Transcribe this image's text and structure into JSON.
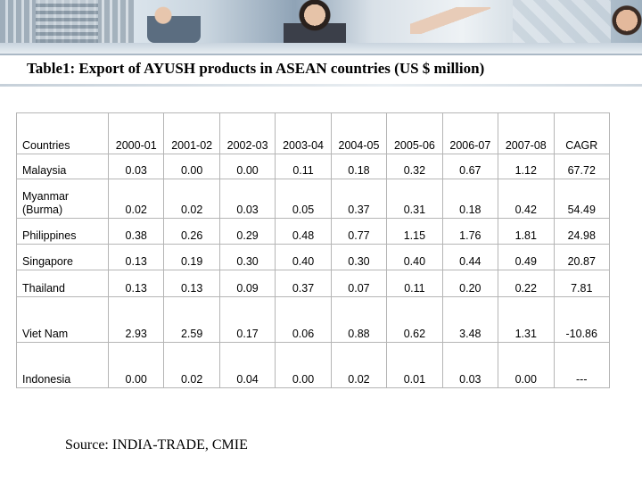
{
  "title": "Table1: Export of AYUSH products in ASEAN countries (US $ million)",
  "table": {
    "headers": [
      "Countries",
      "2000-01",
      "2001-02",
      "2002-03",
      "2003-04",
      "2004-05",
      "2005-06",
      "2006-07",
      "2007-08",
      "CAGR"
    ],
    "rows": [
      [
        "Malaysia",
        "0.03",
        "0.00",
        "0.00",
        "0.11",
        "0.18",
        "0.32",
        "0.67",
        "1.12",
        "67.72"
      ],
      [
        "Myanmar (Burma)",
        "0.02",
        "0.02",
        "0.03",
        "0.05",
        "0.37",
        "0.31",
        "0.18",
        "0.42",
        "54.49"
      ],
      [
        "Philippines",
        "0.38",
        "0.26",
        "0.29",
        "0.48",
        "0.77",
        "1.15",
        "1.76",
        "1.81",
        "24.98"
      ],
      [
        "Singapore",
        "0.13",
        "0.19",
        "0.30",
        "0.40",
        "0.30",
        "0.40",
        "0.44",
        "0.49",
        "20.87"
      ],
      [
        "Thailand",
        "0.13",
        "0.13",
        "0.09",
        "0.37",
        "0.07",
        "0.11",
        "0.20",
        "0.22",
        "7.81"
      ],
      [
        "Viet Nam",
        "2.93",
        "2.59",
        "0.17",
        "0.06",
        "0.88",
        "0.62",
        "3.48",
        "1.31",
        "-10.86"
      ],
      [
        "Indonesia",
        "0.00",
        "0.02",
        "0.04",
        "0.00",
        "0.02",
        "0.01",
        "0.03",
        "0.00",
        "---"
      ]
    ]
  },
  "source": "Source: INDIA-TRADE, CMIE"
}
